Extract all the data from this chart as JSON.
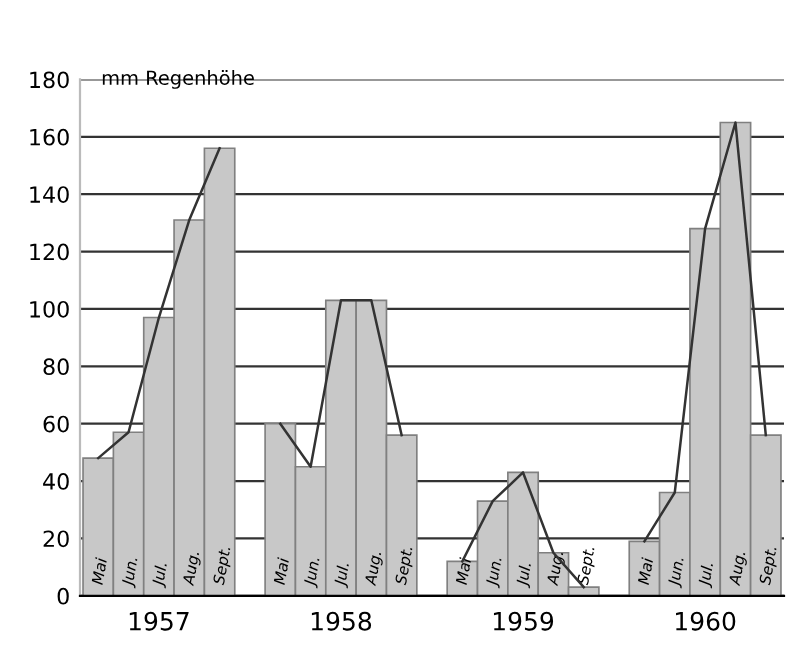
{
  "chart_data": {
    "type": "bar",
    "ylabel": "mm Regenhöhe",
    "categories": [
      "Mai",
      "Jun.",
      "Jul.",
      "Aug.",
      "Sept.",
      null,
      "Mai",
      "Jun.",
      "Jul.",
      "Aug.",
      "Sept.",
      null,
      "Mai",
      "Jun.",
      "Jul.",
      "Aug.",
      "Sept.",
      null,
      "Mai",
      "Jun.",
      "Jul.",
      "Aug.",
      "Sept."
    ],
    "series": [
      {
        "color": "#c8c8c8",
        "values": [
          48,
          57,
          97,
          131,
          156,
          null,
          60,
          45,
          103,
          103,
          56,
          null,
          12,
          33,
          43,
          15,
          3,
          null,
          19,
          36,
          128,
          165,
          56
        ]
      },
      {
        "type": "line",
        "color": "#333333",
        "values": [
          48,
          57,
          97,
          131,
          156,
          null,
          60,
          45,
          103,
          103,
          56,
          null,
          12,
          33,
          43,
          15,
          3,
          null,
          19,
          36,
          128,
          165,
          56
        ]
      }
    ],
    "annotations": [
      "1957",
      "1958",
      "1959",
      "1960"
    ],
    "ylim": [
      0,
      180
    ],
    "yticks": [
      0,
      20,
      40,
      60,
      80,
      100,
      120,
      140,
      160,
      180
    ],
    "grid": "y",
    "marker": "none",
    "line_style": "solid"
  }
}
